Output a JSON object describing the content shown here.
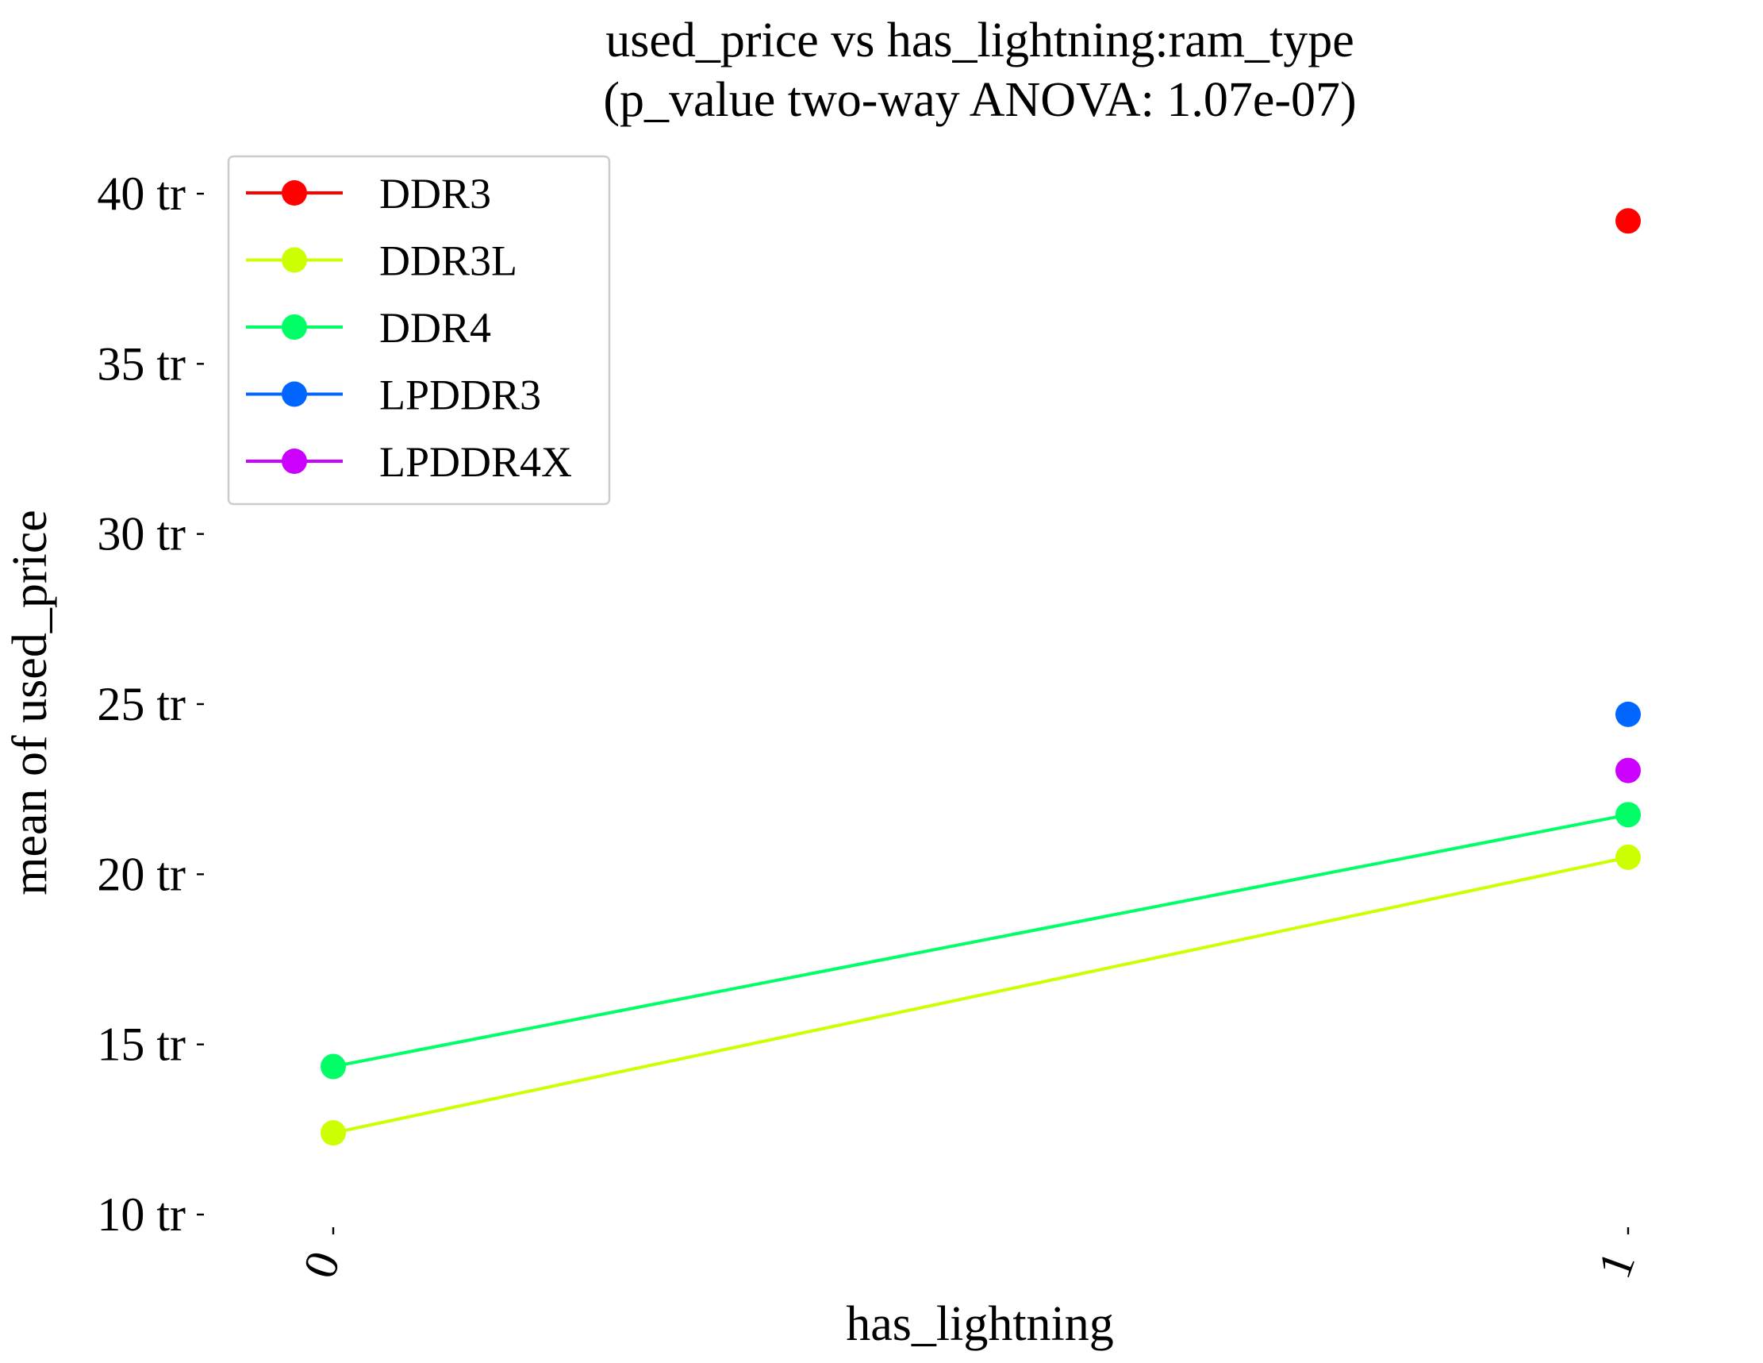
{
  "chart_data": {
    "type": "line",
    "title": "used_price vs has_lightning:ram_type",
    "subtitle": "(p_value two-way ANOVA: 1.07e-07)",
    "xlabel": "has_lightning",
    "ylabel": "mean of used_price",
    "categories": [
      "0",
      "1"
    ],
    "yticks": [
      {
        "value": 10000000,
        "label": "10 tr"
      },
      {
        "value": 15000000,
        "label": "15 tr"
      },
      {
        "value": 20000000,
        "label": "20 tr"
      },
      {
        "value": 25000000,
        "label": "25 tr"
      },
      {
        "value": 30000000,
        "label": "30 tr"
      },
      {
        "value": 35000000,
        "label": "35 tr"
      },
      {
        "value": 40000000,
        "label": "40 tr"
      }
    ],
    "ylim": [
      10000000,
      40000000
    ],
    "grid": false,
    "legend_position": "top-left",
    "series": [
      {
        "name": "DDR3",
        "color": "#ff0000",
        "values": [
          null,
          39200000
        ]
      },
      {
        "name": "DDR3L",
        "color": "#ccff00",
        "values": [
          12400000,
          20500000
        ]
      },
      {
        "name": "DDR4",
        "color": "#00ff66",
        "values": [
          14350000,
          21750000
        ]
      },
      {
        "name": "LPDDR3",
        "color": "#0066ff",
        "values": [
          null,
          24700000
        ]
      },
      {
        "name": "LPDDR4X",
        "color": "#cc00ff",
        "values": [
          null,
          23050000
        ]
      }
    ]
  }
}
